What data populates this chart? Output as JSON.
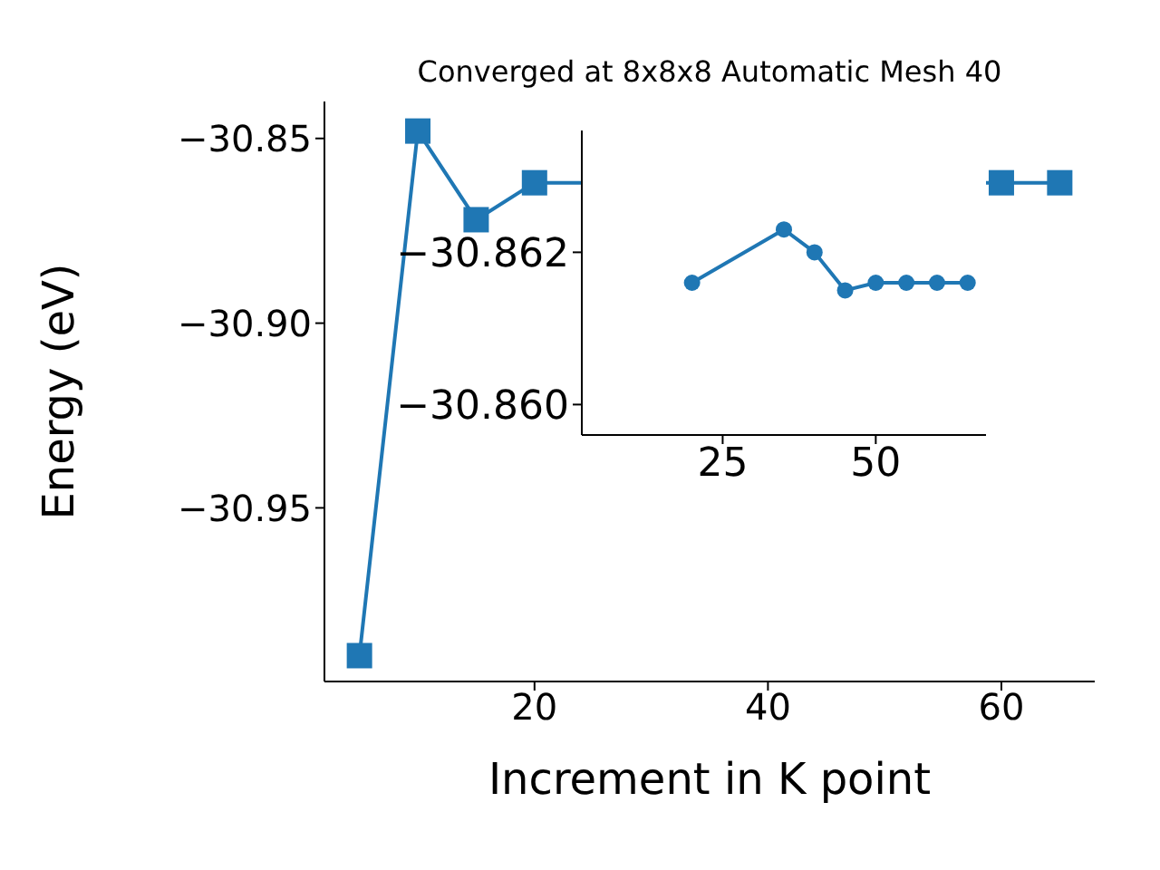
{
  "chart_data": [
    {
      "type": "line",
      "title": "Converged at 8x8x8 Automatic Mesh 40",
      "xlabel": "Increment in K point",
      "ylabel": "Energy (eV)",
      "x": [
        5,
        10,
        15,
        20,
        25,
        30,
        35,
        40,
        45,
        50,
        55,
        60,
        65
      ],
      "series": [
        {
          "color": "#1f77b4",
          "values": [
            -30.99,
            -30.848,
            -30.872,
            -30.862,
            null,
            null,
            null,
            null,
            null,
            null,
            null,
            -30.862,
            -30.862
          ]
        }
      ],
      "xlim": [
        2,
        68
      ],
      "xticks": [
        20,
        40,
        60
      ],
      "ylim": [
        -30.997,
        -30.84
      ],
      "yticks": [
        {
          "value": -30.85,
          "label": "−30.85"
        },
        {
          "value": -30.9,
          "label": "−30.90"
        },
        {
          "value": -30.95,
          "label": "−30.95"
        }
      ],
      "marker": "square",
      "grid": false,
      "legend": false
    },
    {
      "type": "line",
      "x": [
        20,
        35,
        40,
        45,
        50,
        55,
        60,
        65
      ],
      "series": [
        {
          "color": "#1f77b4",
          "values": [
            -30.8616,
            -30.8623,
            -30.862,
            -30.8615,
            -30.8616,
            -30.8616,
            -30.8616,
            -30.8616
          ]
        }
      ],
      "xlim": [
        2,
        68
      ],
      "xticks": [
        25,
        50
      ],
      "ylim": [
        -30.8596,
        -30.8636
      ],
      "yticks": [
        {
          "value": -30.862,
          "label": "−30.862"
        },
        {
          "value": -30.86,
          "label": "−30.860"
        }
      ],
      "marker": "circle",
      "grid": false,
      "legend": false
    }
  ]
}
